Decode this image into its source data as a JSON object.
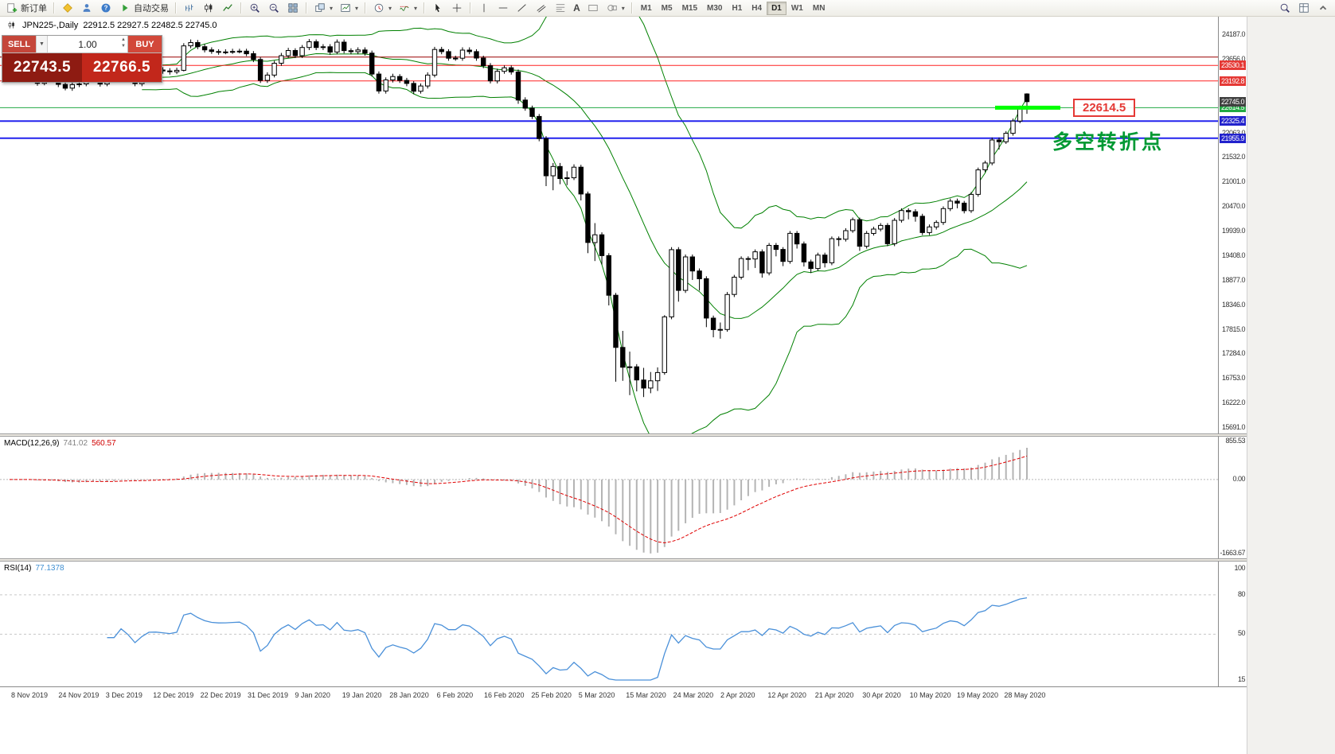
{
  "toolbar": {
    "new_order_label": "新订单",
    "autotrading_label": "自动交易",
    "timeframes": [
      "M1",
      "M5",
      "M15",
      "M30",
      "H1",
      "H4",
      "D1",
      "W1",
      "MN"
    ],
    "active_timeframe": "D1"
  },
  "chart": {
    "symbol_period": "JPN225-,Daily",
    "ohlc": "22912.5 22927.5 22482.5 22745.0"
  },
  "trade_panel": {
    "sell_label": "SELL",
    "buy_label": "BUY",
    "lot_value": "1.00",
    "sell_price": "22743.5",
    "buy_price": "22766.5"
  },
  "annotations": {
    "price_callout": "22614.5",
    "cn_note": "多空转折点"
  },
  "price_axis": {
    "ticks": [
      "24187.0",
      "23656.0",
      "23125.0",
      "22594.0",
      "22063.0",
      "21532.0",
      "21001.0",
      "20470.0",
      "19939.0",
      "19408.0",
      "18877.0",
      "18346.0",
      "17815.0",
      "17284.0",
      "16753.0",
      "16222.0",
      "15691.0"
    ]
  },
  "current_price": {
    "value": "22745.0",
    "label_bg": "#404040"
  },
  "lines": [
    {
      "price": 23710.0,
      "color": "#990000",
      "width": 1,
      "label": null,
      "label_bg": null
    },
    {
      "price": 23530.1,
      "color": "#ff2222",
      "width": 1,
      "label": "23530.1",
      "label_bg": "#e53935"
    },
    {
      "price": 23192.8,
      "color": "#ff2222",
      "width": 1,
      "label": "23192.8",
      "label_bg": "#e53935"
    },
    {
      "price": 22614.5,
      "color": "#22aa44",
      "width": 1,
      "label": "22614.5",
      "label_bg": "#22aa44"
    },
    {
      "price": 22325.4,
      "color": "#2222ee",
      "width": 2,
      "label": "22325.4",
      "label_bg": "#2222cc"
    },
    {
      "price": 21955.9,
      "color": "#2222ee",
      "width": 2,
      "label": "21955.9",
      "label_bg": "#2222cc"
    }
  ],
  "highlight_segment": {
    "price": 22614.5,
    "color": "#00ff00"
  },
  "x_axis": {
    "labels": [
      "8 Nov 2019",
      "24 Nov 2019",
      "3 Dec 2019",
      "12 Dec 2019",
      "22 Dec 2019",
      "31 Dec 2019",
      "9 Jan 2020",
      "19 Jan 2020",
      "28 Jan 2020",
      "6 Feb 2020",
      "16 Feb 2020",
      "25 Feb 2020",
      "5 Mar 2020",
      "15 Mar 2020",
      "24 Mar 2020",
      "2 Apr 2020",
      "12 Apr 2020",
      "21 Apr 2020",
      "30 Apr 2020",
      "10 May 2020",
      "19 May 2020",
      "28 May 2020"
    ]
  },
  "chart_data": {
    "type": "candlestick",
    "symbol": "JPN225-",
    "period": "Daily",
    "candle_colors": {
      "bull": "#ffffff",
      "bear": "#000000",
      "outline": "#000000"
    },
    "candles": [
      [
        23330,
        23450,
        23270,
        23392
      ],
      [
        23392,
        23450,
        23270,
        23332
      ],
      [
        23332,
        23560,
        23290,
        23520
      ],
      [
        23520,
        23580,
        23270,
        23320
      ],
      [
        23320,
        23370,
        23090,
        23141
      ],
      [
        23141,
        23360,
        23100,
        23303
      ],
      [
        23303,
        23390,
        23250,
        23330
      ],
      [
        23330,
        23370,
        23060,
        23118
      ],
      [
        23118,
        23170,
        22990,
        23038
      ],
      [
        23038,
        23170,
        22980,
        23113
      ],
      [
        23113,
        23180,
        23060,
        23130
      ],
      [
        23130,
        23350,
        23080,
        23293
      ],
      [
        23293,
        23430,
        23240,
        23373
      ],
      [
        23373,
        23420,
        23070,
        23126
      ],
      [
        23126,
        23350,
        23080,
        23295
      ],
      [
        23295,
        23350,
        23240,
        23294
      ],
      [
        23294,
        23590,
        23240,
        23530
      ],
      [
        23530,
        23590,
        23320,
        23380
      ],
      [
        23380,
        23430,
        23080,
        23135
      ],
      [
        23135,
        23360,
        23080,
        23300
      ],
      [
        23300,
        23480,
        23250,
        23424
      ],
      [
        23424,
        23490,
        23370,
        23430
      ],
      [
        23430,
        23490,
        23350,
        23410
      ],
      [
        23410,
        23470,
        23330,
        23392
      ],
      [
        23392,
        23480,
        23340,
        23424
      ],
      [
        23424,
        24010,
        23400,
        23952
      ],
      [
        23952,
        24090,
        23900,
        24023
      ],
      [
        24023,
        24080,
        23880,
        23934
      ],
      [
        23934,
        23990,
        23810,
        23865
      ],
      [
        23865,
        23920,
        23780,
        23830
      ],
      [
        23830,
        23880,
        23760,
        23817
      ],
      [
        23817,
        23880,
        23770,
        23821
      ],
      [
        23821,
        23890,
        23780,
        23831
      ],
      [
        23831,
        23890,
        23790,
        23838
      ],
      [
        23838,
        23890,
        23730,
        23782
      ],
      [
        23782,
        23840,
        23600,
        23657
      ],
      [
        23657,
        23710,
        23150,
        23205
      ],
      [
        23205,
        23380,
        23150,
        23320
      ],
      [
        23320,
        23630,
        23270,
        23576
      ],
      [
        23576,
        23800,
        23520,
        23740
      ],
      [
        23740,
        23910,
        23690,
        23851
      ],
      [
        23851,
        23900,
        23690,
        23740
      ],
      [
        23740,
        23970,
        23690,
        23917
      ],
      [
        23917,
        24100,
        23860,
        24041
      ],
      [
        24041,
        24090,
        23860,
        23917
      ],
      [
        23917,
        23990,
        23860,
        23933
      ],
      [
        23933,
        23990,
        23760,
        23818
      ],
      [
        23818,
        24090,
        23770,
        24032
      ],
      [
        24032,
        24090,
        23790,
        23849
      ],
      [
        23849,
        23900,
        23770,
        23827
      ],
      [
        23827,
        23920,
        23770,
        23864
      ],
      [
        23864,
        23920,
        23740,
        23795
      ],
      [
        23795,
        23850,
        23290,
        23343
      ],
      [
        23343,
        23400,
        22920,
        22977
      ],
      [
        22977,
        23270,
        22920,
        23216
      ],
      [
        23216,
        23350,
        23160,
        23290
      ],
      [
        23290,
        23340,
        23150,
        23205
      ],
      [
        23205,
        23260,
        23080,
        23140
      ],
      [
        23140,
        23190,
        22910,
        22972
      ],
      [
        22972,
        23140,
        22920,
        23085
      ],
      [
        23085,
        23380,
        23030,
        23320
      ],
      [
        23320,
        23930,
        23270,
        23874
      ],
      [
        23874,
        23930,
        23770,
        23828
      ],
      [
        23828,
        23880,
        23630,
        23686
      ],
      [
        23686,
        23740,
        23630,
        23686
      ],
      [
        23686,
        23920,
        23630,
        23861
      ],
      [
        23861,
        23920,
        23770,
        23828
      ],
      [
        23828,
        23880,
        23630,
        23688
      ],
      [
        23688,
        23740,
        23470,
        23523
      ],
      [
        23523,
        23580,
        23140,
        23194
      ],
      [
        23194,
        23460,
        23140,
        23401
      ],
      [
        23401,
        23530,
        23350,
        23479
      ],
      [
        23479,
        23530,
        23330,
        23387
      ],
      [
        23387,
        23440,
        22700,
        22780
      ],
      [
        22780,
        22840,
        22550,
        22605
      ],
      [
        22605,
        22660,
        22370,
        22426
      ],
      [
        22426,
        22480,
        21890,
        21948
      ],
      [
        21948,
        22000,
        20920,
        21143
      ],
      [
        21143,
        21420,
        20830,
        21344
      ],
      [
        21344,
        21420,
        20960,
        21083
      ],
      [
        21083,
        21240,
        20940,
        21100
      ],
      [
        21100,
        21390,
        21050,
        21329
      ],
      [
        21329,
        21380,
        20610,
        20750
      ],
      [
        20750,
        20800,
        19470,
        19699
      ],
      [
        19699,
        20120,
        19300,
        19867
      ],
      [
        19867,
        19920,
        19220,
        19416
      ],
      [
        19416,
        19470,
        18340,
        18560
      ],
      [
        18560,
        18610,
        16690,
        17431
      ],
      [
        17431,
        17790,
        16710,
        17002
      ],
      [
        17002,
        17340,
        16400,
        17011
      ],
      [
        17011,
        17070,
        16480,
        16727
      ],
      [
        16727,
        16990,
        16358,
        16553
      ],
      [
        16553,
        16900,
        16440,
        16710
      ],
      [
        16710,
        17000,
        16490,
        16888
      ],
      [
        16888,
        18130,
        16840,
        18092
      ],
      [
        18092,
        19600,
        18040,
        19546
      ],
      [
        19546,
        19600,
        18420,
        18665
      ],
      [
        18665,
        19440,
        18610,
        19389
      ],
      [
        19389,
        19440,
        18890,
        19085
      ],
      [
        19085,
        19140,
        18660,
        18917
      ],
      [
        18917,
        18970,
        17870,
        18065
      ],
      [
        18065,
        18120,
        17650,
        17818
      ],
      [
        17818,
        17970,
        17620,
        17820
      ],
      [
        17820,
        18630,
        17770,
        18576
      ],
      [
        18576,
        19000,
        18520,
        18950
      ],
      [
        18950,
        19400,
        18900,
        19353
      ],
      [
        19353,
        19400,
        19100,
        19345
      ],
      [
        19345,
        19550,
        19150,
        19499
      ],
      [
        19499,
        19550,
        18940,
        19043
      ],
      [
        19043,
        19690,
        18990,
        19638
      ],
      [
        19638,
        19690,
        19400,
        19550
      ],
      [
        19550,
        19600,
        19190,
        19290
      ],
      [
        19290,
        19950,
        19240,
        19897
      ],
      [
        19897,
        19950,
        19570,
        19669
      ],
      [
        19669,
        19720,
        19180,
        19280
      ],
      [
        19280,
        19330,
        19040,
        19138
      ],
      [
        19138,
        19480,
        19090,
        19429
      ],
      [
        19429,
        19480,
        19160,
        19262
      ],
      [
        19262,
        19830,
        19210,
        19783
      ],
      [
        19783,
        19830,
        19620,
        19771
      ],
      [
        19771,
        20010,
        19720,
        19957
      ],
      [
        19957,
        20240,
        19910,
        20194
      ],
      [
        20194,
        20240,
        19520,
        19619
      ],
      [
        19619,
        19950,
        19570,
        19897
      ],
      [
        19897,
        20040,
        19850,
        19991
      ],
      [
        19991,
        20120,
        19940,
        20070
      ],
      [
        20070,
        20120,
        19620,
        19675
      ],
      [
        19675,
        20230,
        19620,
        20179
      ],
      [
        20179,
        20440,
        20130,
        20391
      ],
      [
        20391,
        20440,
        20200,
        20366
      ],
      [
        20366,
        20420,
        20150,
        20267
      ],
      [
        20267,
        20320,
        19860,
        19915
      ],
      [
        19915,
        20090,
        19860,
        20037
      ],
      [
        20037,
        20180,
        19980,
        20134
      ],
      [
        20134,
        20480,
        20080,
        20433
      ],
      [
        20433,
        20650,
        20380,
        20595
      ],
      [
        20595,
        20650,
        20440,
        20552
      ],
      [
        20552,
        20600,
        20330,
        20388
      ],
      [
        20388,
        20790,
        20340,
        20741
      ],
      [
        20741,
        21320,
        20690,
        21271
      ],
      [
        21271,
        21470,
        21220,
        21419
      ],
      [
        21419,
        21970,
        21370,
        21916
      ],
      [
        21916,
        21970,
        21710,
        21878
      ],
      [
        21878,
        22110,
        21830,
        22062
      ],
      [
        22062,
        22380,
        22010,
        22326
      ],
      [
        22326,
        22660,
        22280,
        22614
      ],
      [
        22912,
        22928,
        22482,
        22745
      ]
    ],
    "indicators": {
      "bollinger": {
        "period": 20,
        "deviation": 2,
        "color": "#008000"
      },
      "macd": {
        "label": "MACD(12,26,9)",
        "value": "741.02",
        "signal_value": "560.57",
        "axis": [
          "855.53",
          "0.00",
          "-1663.67"
        ],
        "hist_color": "#b4b4b4",
        "signal_color": "#e00000"
      },
      "rsi": {
        "label": "RSI(14)",
        "value": "77.1378",
        "axis": [
          "100",
          "80",
          "50",
          "15"
        ],
        "levels": [
          80,
          50
        ],
        "color": "#4a90d9"
      }
    }
  }
}
